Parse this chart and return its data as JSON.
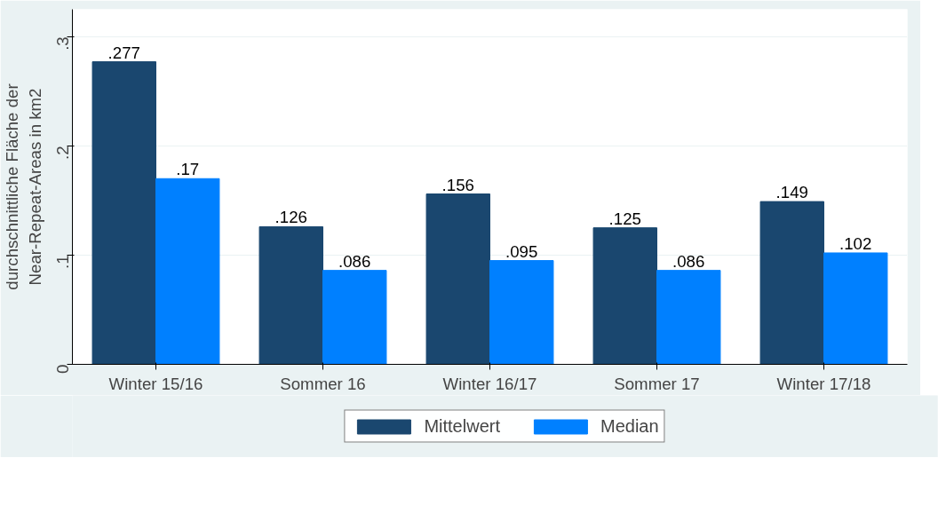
{
  "chart_data": {
    "type": "bar",
    "ylabel": "durchschnittliche Fläche der\nNear-Repeat-Areas in km2",
    "categories": [
      "Winter 15/16",
      "Sommer 16",
      "Winter 16/17",
      "Sommer 17",
      "Winter 17/18"
    ],
    "series": [
      {
        "name": "Mittelwert",
        "color": "#1a476f",
        "values": [
          0.277,
          0.126,
          0.156,
          0.125,
          0.149
        ],
        "value_labels": [
          ".277",
          ".126",
          ".156",
          ".125",
          ".149"
        ]
      },
      {
        "name": "Median",
        "color": "#0080ff",
        "values": [
          0.17,
          0.086,
          0.095,
          0.086,
          0.102
        ],
        "value_labels": [
          ".17",
          ".086",
          ".095",
          ".086",
          ".102"
        ]
      }
    ],
    "ylim": [
      0,
      0.325
    ],
    "yticks": [
      {
        "value": 0,
        "label": "0"
      },
      {
        "value": 0.1,
        "label": ".1"
      },
      {
        "value": 0.2,
        "label": ".2"
      },
      {
        "value": 0.3,
        "label": ".3"
      }
    ],
    "grid": "y",
    "legend": "bottom"
  }
}
